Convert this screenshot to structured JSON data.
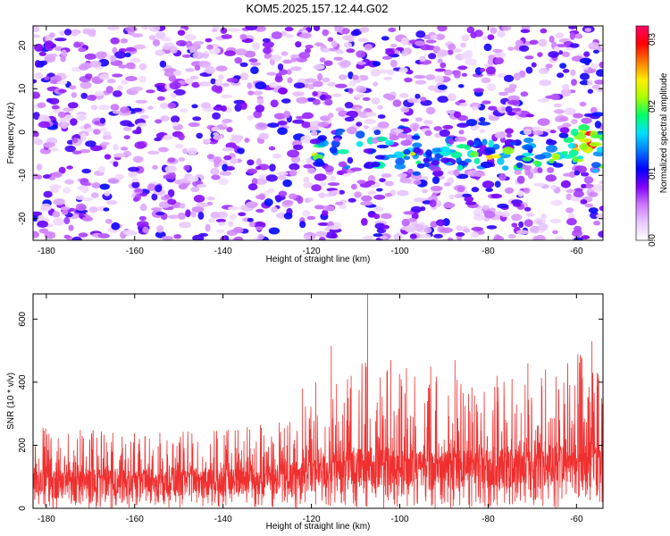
{
  "title": "KOM5.2025.157.12.44.G02",
  "chart_data": [
    {
      "type": "heatmap",
      "xlabel": "Height of straight line (km)",
      "ylabel": "Frequency (Hz)",
      "xlim": [
        -183,
        -54
      ],
      "ylim": [
        -25,
        24.5
      ],
      "xticks": [
        -180,
        -160,
        -140,
        -120,
        -100,
        -80,
        -60
      ],
      "yticks": [
        -20,
        -10,
        0,
        10,
        20
      ],
      "colorbar": {
        "label": "Normalized spectral amplitude",
        "range": [
          0,
          0.32
        ],
        "ticks": [
          "0.0",
          "0.1",
          "0.2",
          "0.3"
        ],
        "colors": [
          "#ffffff",
          "#e9c9ff",
          "#cc77ff",
          "#8000ff",
          "#0000ff",
          "#0077ff",
          "#00e0ff",
          "#00ff66",
          "#aaff00",
          "#ffee00",
          "#ff7700",
          "#ff0000",
          "#ff0066"
        ]
      },
      "band": {
        "x_start": -120,
        "x_end": -54,
        "center_freq": -5,
        "half_width": 4,
        "peak_x": -58,
        "peak_freq": -1
      }
    },
    {
      "type": "line",
      "xlabel": "Height of straight line (km)",
      "ylabel": "SNR (10 * v/v)",
      "xlim": [
        -183,
        -54
      ],
      "ylim": [
        0,
        680
      ],
      "xticks": [
        -180,
        -160,
        -140,
        -120,
        -100,
        -80,
        -60
      ],
      "yticks": [
        0,
        200,
        400,
        600
      ],
      "color": "#f03030",
      "envelope": [
        {
          "x": -183,
          "base": 95,
          "peak": 260
        },
        {
          "x": -160,
          "base": 95,
          "peak": 240
        },
        {
          "x": -140,
          "base": 100,
          "peak": 250
        },
        {
          "x": -125,
          "base": 110,
          "peak": 290
        },
        {
          "x": -120,
          "base": 125,
          "peak": 360
        },
        {
          "x": -112,
          "base": 140,
          "peak": 420
        },
        {
          "x": -107,
          "base": 150,
          "peak": 480
        },
        {
          "x": -100,
          "base": 145,
          "peak": 430
        },
        {
          "x": -90,
          "base": 140,
          "peak": 420
        },
        {
          "x": -80,
          "base": 150,
          "peak": 400
        },
        {
          "x": -70,
          "base": 155,
          "peak": 440
        },
        {
          "x": -60,
          "base": 160,
          "peak": 500
        },
        {
          "x": -54,
          "base": 160,
          "peak": 430
        }
      ],
      "spikes": [
        {
          "x": -107.3,
          "y": 680
        },
        {
          "x": -115.5,
          "y": 515
        },
        {
          "x": -102,
          "y": 470
        },
        {
          "x": -87.5,
          "y": 470
        },
        {
          "x": -93,
          "y": 450
        },
        {
          "x": -98.5,
          "y": 445
        },
        {
          "x": -56.5,
          "y": 530
        },
        {
          "x": -59,
          "y": 480
        },
        {
          "x": -62,
          "y": 460
        },
        {
          "x": -71,
          "y": 460
        },
        {
          "x": -78,
          "y": 420
        },
        {
          "x": -67,
          "y": 440
        },
        {
          "x": -122,
          "y": 380
        },
        {
          "x": -119,
          "y": 400
        },
        {
          "x": -111,
          "y": 420
        },
        {
          "x": -55,
          "y": 410
        }
      ]
    }
  ]
}
